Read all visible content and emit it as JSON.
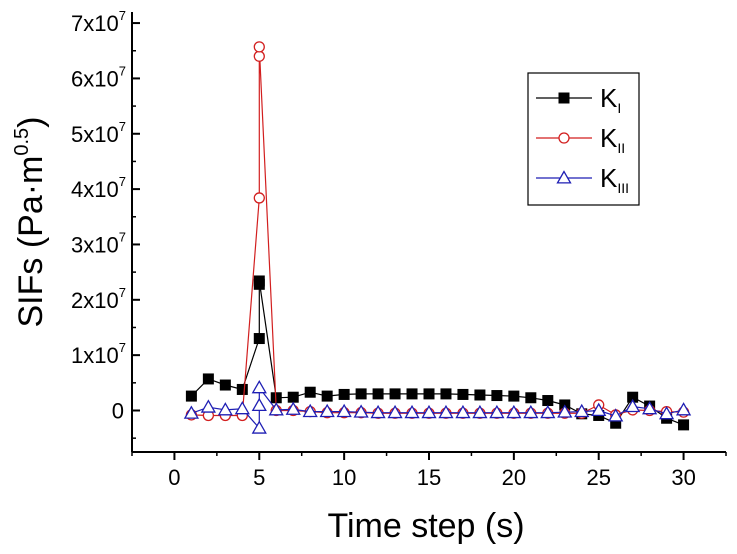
{
  "chart_data": {
    "type": "line",
    "xlabel": "Time step (s)",
    "ylabel": "SIFs (Pa·m",
    "ylabel_exponent": "0.5",
    "ylabel_close": ")",
    "xlim": [
      -2.5,
      32.5
    ],
    "ylim": [
      -7500000,
      72000000
    ],
    "xticks": [
      0,
      5,
      10,
      15,
      20,
      25,
      30
    ],
    "xtick_labels": [
      "0",
      "5",
      "10",
      "15",
      "20",
      "25",
      "30"
    ],
    "yticks": [
      0,
      10000000,
      20000000,
      30000000,
      40000000,
      50000000,
      60000000,
      70000000
    ],
    "ytick_labels": [
      {
        "base": "0",
        "exp": ""
      },
      {
        "base": "1x10",
        "exp": "7"
      },
      {
        "base": "2x10",
        "exp": "7"
      },
      {
        "base": "3x10",
        "exp": "7"
      },
      {
        "base": "4x10",
        "exp": "7"
      },
      {
        "base": "5x10",
        "exp": "7"
      },
      {
        "base": "6x10",
        "exp": "7"
      },
      {
        "base": "7x10",
        "exp": "7"
      }
    ],
    "legend_position": "top-right",
    "series": [
      {
        "name": "K",
        "subscript": "I",
        "color": "#000000",
        "marker": "square-filled",
        "points": [
          [
            1,
            2600000
          ],
          [
            2,
            5700000
          ],
          [
            3,
            4600000
          ],
          [
            4,
            3800000
          ],
          [
            5,
            13000000
          ],
          [
            5,
            22800000
          ],
          [
            5,
            23400000
          ],
          [
            6,
            2300000
          ],
          [
            7,
            2400000
          ],
          [
            8,
            3300000
          ],
          [
            9,
            2600000
          ],
          [
            10,
            2900000
          ],
          [
            11,
            3000000
          ],
          [
            12,
            3000000
          ],
          [
            13,
            3000000
          ],
          [
            14,
            3000000
          ],
          [
            15,
            3000000
          ],
          [
            16,
            3000000
          ],
          [
            17,
            2900000
          ],
          [
            18,
            2800000
          ],
          [
            19,
            2700000
          ],
          [
            20,
            2600000
          ],
          [
            21,
            2300000
          ],
          [
            22,
            1800000
          ],
          [
            23,
            1000000
          ],
          [
            24,
            -600000
          ],
          [
            25,
            -900000
          ],
          [
            26,
            -2300000
          ],
          [
            27,
            2400000
          ],
          [
            28,
            800000
          ],
          [
            29,
            -1400000
          ],
          [
            30,
            -2600000
          ]
        ]
      },
      {
        "name": "K",
        "subscript": "II",
        "color": "#d21f1f",
        "marker": "circle-open",
        "points": [
          [
            1,
            -800000
          ],
          [
            2,
            -900000
          ],
          [
            3,
            -900000
          ],
          [
            4,
            -900000
          ],
          [
            5,
            38400000
          ],
          [
            5,
            64000000
          ],
          [
            5,
            65700000
          ],
          [
            6,
            0
          ],
          [
            7,
            0
          ],
          [
            8,
            -200000
          ],
          [
            9,
            -400000
          ],
          [
            10,
            -400000
          ],
          [
            11,
            -400000
          ],
          [
            12,
            -500000
          ],
          [
            13,
            -500000
          ],
          [
            14,
            -500000
          ],
          [
            15,
            -500000
          ],
          [
            16,
            -500000
          ],
          [
            17,
            -500000
          ],
          [
            18,
            -500000
          ],
          [
            19,
            -500000
          ],
          [
            20,
            -500000
          ],
          [
            21,
            -500000
          ],
          [
            22,
            -500000
          ],
          [
            23,
            -500000
          ],
          [
            24,
            -500000
          ],
          [
            25,
            1000000
          ],
          [
            26,
            -800000
          ],
          [
            27,
            100000
          ],
          [
            28,
            0
          ],
          [
            29,
            -200000
          ],
          [
            30,
            -300000
          ]
        ]
      },
      {
        "name": "K",
        "subscript": "III",
        "color": "#1f1fb4",
        "marker": "triangle-open",
        "points": [
          [
            1,
            -500000
          ],
          [
            2,
            600000
          ],
          [
            3,
            100000
          ],
          [
            4,
            300000
          ],
          [
            5,
            -3200000
          ],
          [
            5,
            900000
          ],
          [
            5,
            4100000
          ],
          [
            6,
            100000
          ],
          [
            7,
            200000
          ],
          [
            8,
            -200000
          ],
          [
            9,
            -200000
          ],
          [
            10,
            -200000
          ],
          [
            11,
            -300000
          ],
          [
            12,
            -400000
          ],
          [
            13,
            -400000
          ],
          [
            14,
            -400000
          ],
          [
            15,
            -400000
          ],
          [
            16,
            -400000
          ],
          [
            17,
            -400000
          ],
          [
            18,
            -400000
          ],
          [
            19,
            -400000
          ],
          [
            20,
            -400000
          ],
          [
            21,
            -400000
          ],
          [
            22,
            -400000
          ],
          [
            23,
            -300000
          ],
          [
            24,
            -200000
          ],
          [
            25,
            0
          ],
          [
            26,
            -1000000
          ],
          [
            27,
            700000
          ],
          [
            28,
            300000
          ],
          [
            29,
            -600000
          ],
          [
            30,
            100000
          ]
        ]
      }
    ]
  }
}
